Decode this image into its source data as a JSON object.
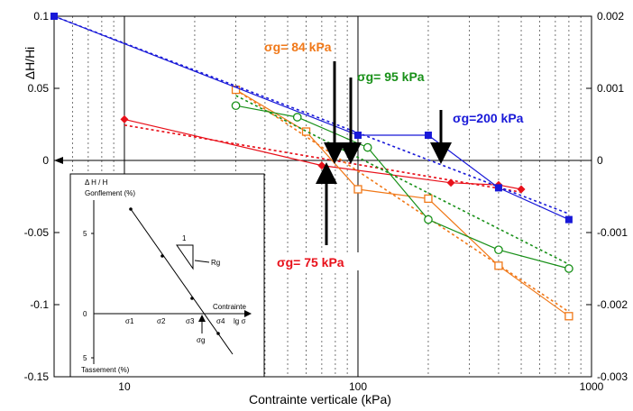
{
  "chart_data": {
    "type": "line",
    "xlabel": "Contrainte verticale (kPa)",
    "ylabel": "ΔH/Hi",
    "xscale": "log",
    "xlim": [
      5,
      1000
    ],
    "ylim": [
      -0.15,
      0.1
    ],
    "y2lim": [
      -0.003,
      0.002
    ],
    "x_ticks": [
      "10",
      "100",
      "1000"
    ],
    "y_ticks": [
      "0.1",
      "0.05",
      "0",
      "-0.05",
      "-0.1",
      "-0.15"
    ],
    "y2_ticks": [
      "0.002",
      "0.001",
      "0",
      "-0.001",
      "-0.002",
      "-0.003"
    ],
    "grid": "vertical dotted at log minor ticks; solid at decades",
    "series": [
      {
        "color": "#e8101a",
        "marker": "diamond",
        "style": "solid+dotted fit",
        "x": [
          10,
          70,
          250,
          400,
          500
        ],
        "y": [
          0.0285,
          -0.0035,
          -0.0155,
          -0.017,
          -0.02
        ],
        "fit_x": [
          10,
          500
        ],
        "fit_y": [
          0.0245,
          -0.022
        ]
      },
      {
        "color": "#f07818",
        "marker": "open-square",
        "style": "solid+dotted fit",
        "x": [
          30,
          60,
          100,
          200,
          400,
          800
        ],
        "y": [
          0.049,
          0.02,
          -0.02,
          -0.0265,
          -0.073,
          -0.108
        ],
        "fit_x": [
          30,
          800
        ],
        "fit_y": [
          0.049,
          -0.105
        ]
      },
      {
        "color": "#189018",
        "marker": "open-circle",
        "style": "solid+dotted fit",
        "x": [
          30,
          55,
          110,
          200,
          400,
          800
        ],
        "y": [
          0.038,
          0.03,
          0.009,
          -0.041,
          -0.062,
          -0.075
        ],
        "fit_x": [
          30,
          800
        ],
        "fit_y": [
          0.045,
          -0.072
        ]
      },
      {
        "color": "#1818d8",
        "marker": "square",
        "style": "solid+dotted fit",
        "x": [
          5,
          100,
          200,
          400,
          800
        ],
        "y": [
          0.1,
          0.0175,
          0.0175,
          -0.019,
          -0.041
        ],
        "fit_x": [
          5,
          800
        ],
        "fit_y": [
          0.1,
          -0.037
        ]
      }
    ],
    "annotations": [
      {
        "text": "σg= 84 kPa",
        "color": "#f07818",
        "arrow_x": 80
      },
      {
        "text": "σg= 95 kPa",
        "color": "#189018",
        "arrow_x": 95
      },
      {
        "text": "σg=200 kPa",
        "color": "#1818d8",
        "arrow_x": 220
      },
      {
        "text": "σg= 75 kPa",
        "color": "#e8101a",
        "arrow_x": 75
      }
    ]
  },
  "inset": {
    "y_axis_title": "Δ H / H",
    "top_label": "Gonflement (%)",
    "bottom_label": "Tassement (%)",
    "y_ticks": [
      "5",
      "0",
      "5"
    ],
    "x_labels": [
      "σ1",
      "σ2",
      "σ3",
      "σ4"
    ],
    "contrainte_label": "Contrainte",
    "lg_label": "lg σ",
    "slope_label": "1",
    "rg_label": "Rg",
    "sg_label": "σg"
  }
}
